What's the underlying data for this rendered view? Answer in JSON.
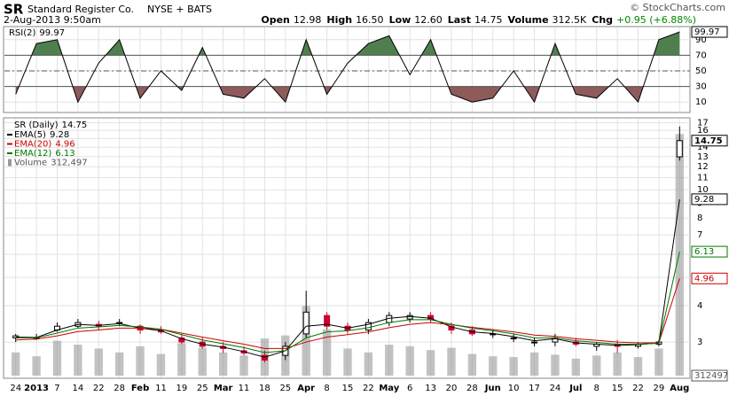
{
  "header": {
    "symbol": "SR",
    "company": "Standard Register Co.",
    "exchange": "NYSE + BATS",
    "timestamp": "2-Aug-2013 9:50am",
    "quote": [
      {
        "label": "Open",
        "value": "12.98"
      },
      {
        "label": "High",
        "value": "16.50"
      },
      {
        "label": "Low",
        "value": "12.60"
      },
      {
        "label": "Last",
        "value": "14.75"
      },
      {
        "label": "Volume",
        "value": "312.5K"
      },
      {
        "label": "Chg",
        "value": "+0.95 (+6.88%)"
      }
    ],
    "credit": "© StockCharts.com"
  },
  "chart_data": [
    {
      "type": "line",
      "title": "RSI(2)",
      "color": "#000000",
      "ylim": [
        0,
        100
      ],
      "yticks": [
        90,
        70,
        50,
        30,
        10
      ],
      "levels": [
        70,
        50,
        30
      ],
      "level_styles": [
        "solid",
        "dashed",
        "solid"
      ],
      "overbought_color": "#4f7f4f",
      "oversold_color": "#8e5a5a",
      "values": [
        20,
        85,
        90,
        10,
        60,
        90,
        15,
        50,
        25,
        80,
        20,
        15,
        40,
        10,
        90,
        20,
        60,
        85,
        95,
        45,
        90,
        20,
        10,
        15,
        50,
        10,
        85,
        20,
        15,
        40,
        10,
        90,
        99.97
      ]
    },
    {
      "type": "candlestick",
      "title": "SR (Daily)",
      "log_scale": true,
      "grid": true,
      "up_color": "#000000",
      "down_color": "#cc0033",
      "categories": [
        "24",
        "2013",
        "7",
        "14",
        "22",
        "28",
        "Feb",
        "11",
        "19",
        "25",
        "Mar",
        "11",
        "18",
        "25",
        "Apr",
        "8",
        "15",
        "22",
        "May",
        "6",
        "13",
        "20",
        "28",
        "Jun",
        "10",
        "17",
        "24",
        "Jul",
        "8",
        "15",
        "22",
        "29",
        "Aug"
      ],
      "open": [
        3.1,
        3.1,
        3.3,
        3.4,
        3.45,
        3.5,
        3.4,
        3.3,
        3.1,
        3.0,
        2.9,
        2.8,
        2.7,
        2.7,
        3.2,
        3.7,
        3.4,
        3.3,
        3.5,
        3.6,
        3.7,
        3.4,
        3.3,
        3.2,
        3.1,
        3.0,
        3.0,
        3.0,
        2.9,
        2.95,
        2.9,
        2.95,
        12.98
      ],
      "high": [
        3.2,
        3.2,
        3.5,
        3.6,
        3.55,
        3.6,
        3.45,
        3.4,
        3.2,
        3.1,
        3.0,
        2.9,
        2.8,
        3.0,
        4.5,
        3.8,
        3.5,
        3.6,
        3.8,
        3.8,
        3.8,
        3.5,
        3.4,
        3.3,
        3.2,
        3.1,
        3.2,
        3.1,
        3.0,
        3.05,
        3.0,
        3.05,
        16.5
      ],
      "low": [
        3.0,
        3.05,
        3.25,
        3.35,
        3.3,
        3.4,
        3.2,
        3.2,
        2.95,
        2.85,
        2.75,
        2.7,
        2.55,
        2.6,
        3.1,
        3.3,
        3.2,
        3.2,
        3.4,
        3.5,
        3.5,
        3.2,
        3.15,
        3.1,
        3.0,
        2.9,
        2.9,
        2.9,
        2.8,
        2.75,
        2.85,
        2.9,
        12.6
      ],
      "close": [
        3.15,
        3.1,
        3.4,
        3.5,
        3.4,
        3.5,
        3.3,
        3.25,
        3.0,
        2.9,
        2.85,
        2.75,
        2.6,
        2.9,
        3.8,
        3.4,
        3.3,
        3.5,
        3.7,
        3.7,
        3.6,
        3.3,
        3.2,
        3.2,
        3.1,
        3.0,
        3.1,
        2.95,
        2.95,
        2.9,
        2.95,
        3.0,
        14.75
      ],
      "series": [
        {
          "name": "EMA(5)",
          "color": "#000000",
          "values": [
            3.12,
            3.11,
            3.3,
            3.45,
            3.42,
            3.47,
            3.35,
            3.28,
            3.08,
            2.95,
            2.88,
            2.78,
            2.66,
            2.8,
            3.4,
            3.45,
            3.35,
            3.45,
            3.62,
            3.67,
            3.62,
            3.38,
            3.25,
            3.21,
            3.13,
            3.03,
            3.08,
            2.98,
            2.95,
            2.92,
            2.94,
            2.98,
            9.28
          ]
        },
        {
          "name": "EMA(20)",
          "color": "#cc0000",
          "values": [
            3.05,
            3.07,
            3.15,
            3.26,
            3.3,
            3.35,
            3.35,
            3.32,
            3.22,
            3.12,
            3.03,
            2.95,
            2.85,
            2.85,
            3.0,
            3.12,
            3.18,
            3.25,
            3.36,
            3.45,
            3.5,
            3.44,
            3.37,
            3.31,
            3.25,
            3.17,
            3.14,
            3.08,
            3.04,
            3.0,
            2.98,
            2.98,
            4.96
          ]
        },
        {
          "name": "EMA(12)",
          "color": "#007700",
          "values": [
            3.1,
            3.1,
            3.22,
            3.35,
            3.38,
            3.42,
            3.38,
            3.32,
            3.18,
            3.05,
            2.96,
            2.87,
            2.76,
            2.8,
            3.1,
            3.25,
            3.28,
            3.36,
            3.5,
            3.58,
            3.58,
            3.45,
            3.35,
            3.28,
            3.2,
            3.1,
            3.1,
            3.03,
            2.99,
            2.95,
            2.95,
            2.97,
            6.13
          ]
        }
      ],
      "volume": {
        "name": "Volume",
        "color": "#999999",
        "last_label": "312,497",
        "ylim": [
          0,
          330000
        ],
        "values": [
          30000,
          25000,
          45000,
          40000,
          35000,
          30000,
          38000,
          28000,
          42000,
          36000,
          30000,
          26000,
          48000,
          52000,
          90000,
          60000,
          35000,
          30000,
          40000,
          38000,
          33000,
          36000,
          28000,
          25000,
          24000,
          30000,
          27000,
          22000,
          26000,
          30000,
          24000,
          35000,
          312497
        ]
      },
      "ylim": [
        2.3,
        17.3
      ],
      "yticks": [
        17,
        16,
        15,
        14,
        13,
        12,
        11,
        10,
        9,
        8,
        7,
        6,
        5,
        4,
        3
      ]
    }
  ]
}
